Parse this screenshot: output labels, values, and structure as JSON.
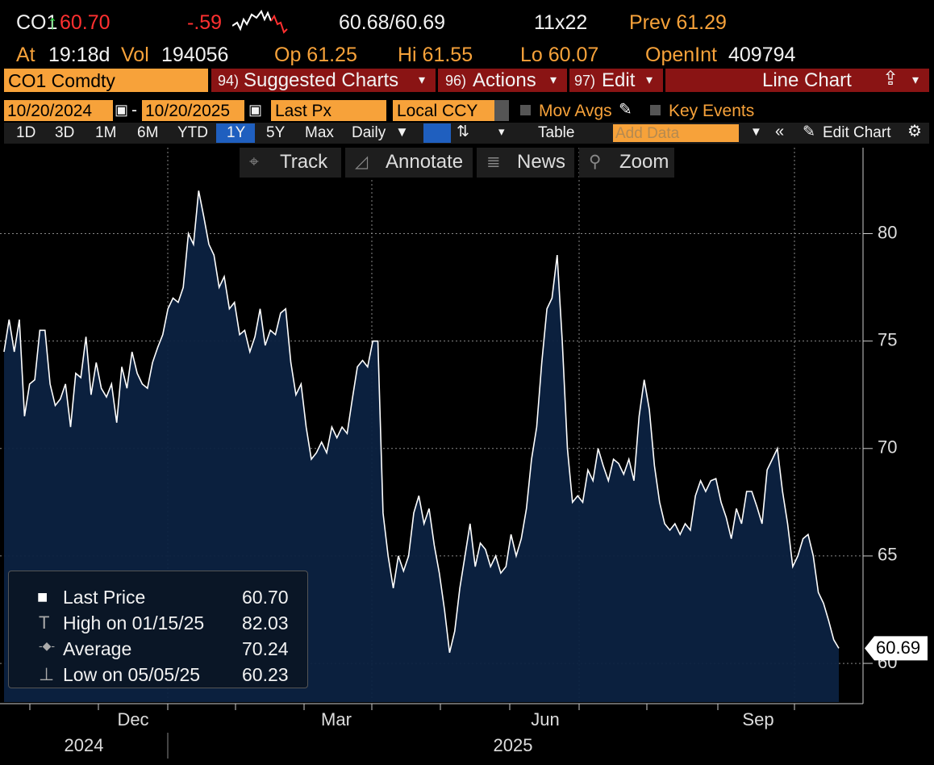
{
  "header": {
    "ticker": "CO1",
    "last": "60.70",
    "change": "-.59",
    "bid_ask": "60.68/60.69",
    "size": "11x22",
    "prev": "Prev 61.29",
    "time_label": "At",
    "time": "19:18d",
    "vol_label": "Vol",
    "vol": "194056",
    "open": "Op 61.25",
    "high": "Hi 61.55",
    "low": "Lo 60.07",
    "open_int_label": "OpenInt",
    "open_int": "409794"
  },
  "menu": {
    "security": "CO1 Comdty",
    "items": [
      {
        "num": "94)",
        "label": "Suggested Charts"
      },
      {
        "num": "96)",
        "label": "Actions"
      },
      {
        "num": "97)",
        "label": "Edit"
      }
    ],
    "chart_type": "Line Chart"
  },
  "controls": {
    "start": "10/20/2024",
    "end": "10/20/2025",
    "field": "Last Px",
    "currency": "Local CCY",
    "mov_avgs": "Mov Avgs",
    "key_events": "Key Events"
  },
  "toolbar": {
    "periods": [
      "1D",
      "3D",
      "1M",
      "6M",
      "YTD",
      "1Y",
      "5Y",
      "Max"
    ],
    "selected": "1Y",
    "frequency": "Daily",
    "table": "Table",
    "add_data": "Add Data",
    "edit_chart": "Edit Chart"
  },
  "tools": [
    "Track",
    "Annotate",
    "News",
    "Zoom"
  ],
  "chart_data": {
    "type": "area",
    "grid": true,
    "series": [
      {
        "name": "Last Price",
        "color": "#ffffff",
        "fill": "#0c2241",
        "values": [
          74.5,
          76,
          74.5,
          76,
          71.5,
          73,
          73.2,
          75.5,
          75.5,
          73,
          72,
          72.3,
          73,
          71,
          73.5,
          73.3,
          75.2,
          72.5,
          74,
          72.8,
          72.4,
          73,
          71.2,
          73.8,
          72.8,
          74.5,
          73.5,
          73,
          72.8,
          74,
          74.7,
          75.3,
          76.5,
          77,
          76.8,
          77.5,
          80,
          79.5,
          82,
          80.8,
          79.5,
          79,
          77.5,
          78,
          76.5,
          76.8,
          75.3,
          75.5,
          74.5,
          75.2,
          76.5,
          74.8,
          75.5,
          75.3,
          76.3,
          76.5,
          74,
          72.5,
          73,
          71,
          69.5,
          69.8,
          70.3,
          69.8,
          71,
          70.5,
          71,
          70.7,
          72.3,
          73.8,
          74.1,
          73.8,
          75,
          75,
          67,
          65,
          63.5,
          65,
          64.3,
          65,
          67,
          67.8,
          66.5,
          67.2,
          65.5,
          64.2,
          62.5,
          60.5,
          61.5,
          63.5,
          65,
          66.5,
          64.5,
          65.6,
          65.3,
          64.5,
          65,
          64.2,
          64.5,
          66,
          65,
          65.8,
          67.2,
          69.5,
          71,
          74,
          76.5,
          77,
          79,
          75,
          70,
          67.5,
          67.8,
          67.5,
          69,
          68.5,
          70,
          69.2,
          68.5,
          69.5,
          69.3,
          68.8,
          69.5,
          68.5,
          71.5,
          73.2,
          71.8,
          69.2,
          67.5,
          66.5,
          66.2,
          66.5,
          66,
          66.5,
          66.2,
          67.8,
          68.5,
          68,
          68.5,
          68.6,
          67.5,
          66.8,
          65.8,
          67.2,
          66.5,
          68,
          68,
          67.3,
          66.5,
          69,
          69.5,
          70,
          68,
          66.5,
          64.5,
          65,
          65.8,
          66,
          65,
          63.3,
          62.8,
          62,
          61.1,
          60.7
        ]
      }
    ],
    "ylim": [
      58.2,
      84
    ],
    "yticks": [
      60,
      65,
      70,
      75,
      80
    ],
    "months": [
      "Dec",
      "Mar",
      "Jun",
      "Sep"
    ],
    "years": [
      "2024",
      "2025"
    ],
    "legend": [
      {
        "value": "60.70"
      },
      {
        "label": "High on 01/15/25",
        "value": "82.03"
      },
      {
        "label": "Average",
        "value": "70.24"
      },
      {
        "label": "Low on 05/05/25",
        "value": "60.23"
      }
    ],
    "last_label": "60.69"
  }
}
